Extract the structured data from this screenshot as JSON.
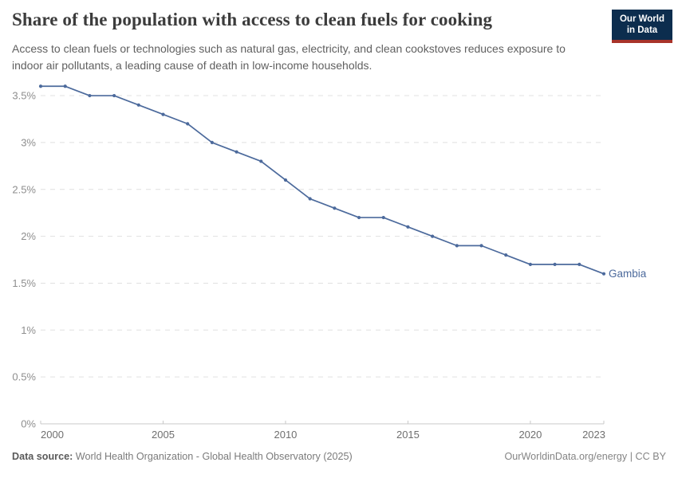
{
  "header": {
    "title": "Share of the population with access to clean fuels for cooking",
    "subtitle": "Access to clean fuels or technologies such as natural gas, electricity, and clean cookstoves reduces exposure to indoor air pollutants, a leading cause of death in low-income households.",
    "logo": {
      "line1": "Our World",
      "line2": "in Data"
    }
  },
  "chart_data": {
    "type": "line",
    "title": "Share of the population with access to clean fuels for cooking",
    "xlabel": "",
    "ylabel": "",
    "ylim": [
      0,
      3.6
    ],
    "yticks": [
      0,
      0.5,
      1,
      1.5,
      2,
      2.5,
      3,
      3.5
    ],
    "ytick_suffix": "%",
    "xticks": [
      2000,
      2005,
      2010,
      2015,
      2020,
      2023
    ],
    "grid": "horizontal-dashed",
    "legend_position": "end-of-line-label",
    "series": [
      {
        "name": "Gambia",
        "color": "#4C6A9C",
        "x": [
          2000,
          2001,
          2002,
          2003,
          2004,
          2005,
          2006,
          2007,
          2008,
          2009,
          2010,
          2011,
          2012,
          2013,
          2014,
          2015,
          2016,
          2017,
          2018,
          2019,
          2020,
          2021,
          2022,
          2023
        ],
        "values": [
          3.6,
          3.6,
          3.5,
          3.5,
          3.4,
          3.3,
          3.2,
          3.0,
          2.9,
          2.8,
          2.6,
          2.4,
          2.3,
          2.2,
          2.2,
          2.1,
          2.0,
          1.9,
          1.9,
          1.8,
          1.7,
          1.7,
          1.7,
          1.6
        ]
      }
    ]
  },
  "footer": {
    "datasource_label": "Data source:",
    "datasource_value": "World Health Organization - Global Health Observatory (2025)",
    "link": "OurWorldinData.org/energy | CC BY"
  },
  "colors": {
    "series_line": "#4C6A9C",
    "logo_background": "#0c2d4e",
    "logo_stripe": "#a8332a",
    "gridline": "#e0e0e0",
    "axis_line": "#c8c8c8",
    "y_tick_text": "#8e8e8e",
    "x_tick_text": "#6f6f6f",
    "title_text": "#3c3c3c",
    "subtitle_text": "#606060"
  }
}
